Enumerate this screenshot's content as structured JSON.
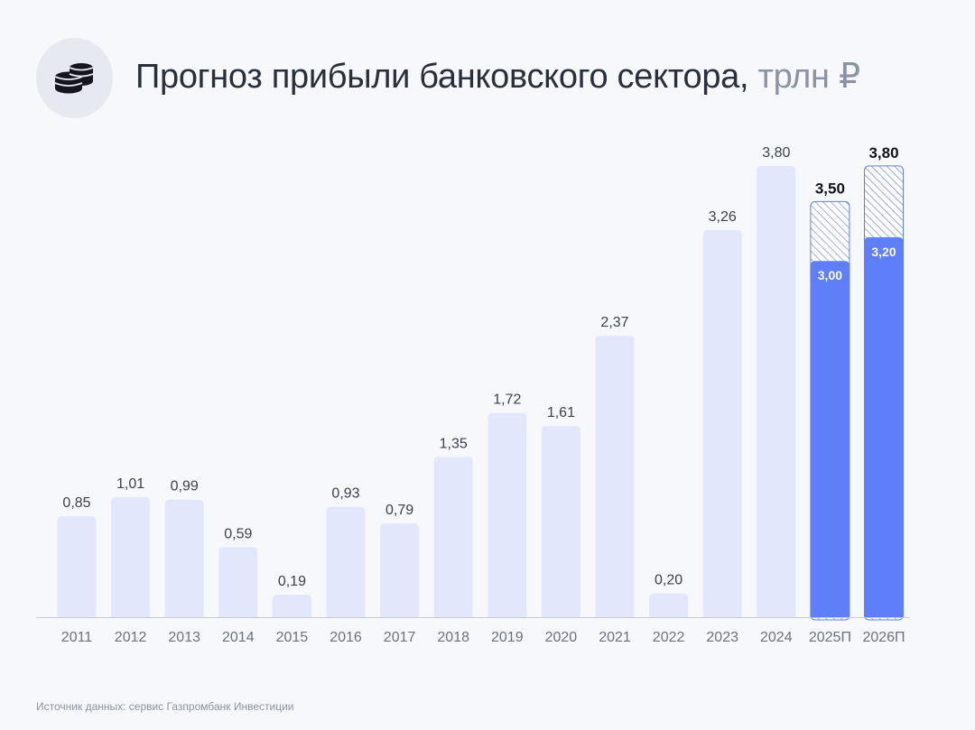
{
  "header": {
    "title": "Прогноз прибыли банковского сектора,",
    "unit": "трлн ₽",
    "icon": "coins-stack-icon"
  },
  "footer": {
    "source": "Источник данных: сервис Газпромбанк Инвестиции"
  },
  "colors": {
    "bar": "#e3e7fb",
    "forecast_bar": "#5e7ff9",
    "forecast_hatch": "#5e7ff9",
    "axis_line": "#c9ccd4",
    "value_label": "#3a3f4b",
    "tick_label": "#6b7180",
    "background": "#f7f8fb"
  },
  "chart_data": {
    "type": "bar",
    "title": "Прогноз прибыли банковского сектора, трлн ₽",
    "categories": [
      "2011",
      "2012",
      "2013",
      "2014",
      "2015",
      "2016",
      "2017",
      "2018",
      "2019",
      "2020",
      "2021",
      "2022",
      "2023",
      "2024",
      "2025П",
      "2026П"
    ],
    "values": [
      0.85,
      1.01,
      0.99,
      0.59,
      0.19,
      0.93,
      0.79,
      1.35,
      1.72,
      1.61,
      2.37,
      0.2,
      3.26,
      3.8,
      null,
      null
    ],
    "value_labels": [
      "0,85",
      "1,01",
      "0,99",
      "0,59",
      "0,19",
      "0,93",
      "0,79",
      "1,35",
      "1,72",
      "1,61",
      "2,37",
      "0,20",
      "3,26",
      "3,80",
      "",
      ""
    ],
    "forecast": [
      {
        "category": "2025П",
        "low": 3.0,
        "high": 3.5,
        "low_label": "3,00",
        "high_label": "3,50"
      },
      {
        "category": "2026П",
        "low": 3.2,
        "high": 3.8,
        "low_label": "3,20",
        "high_label": "3,80"
      }
    ],
    "ylim": [
      0,
      4.0
    ],
    "grid": false,
    "xlabel": "",
    "ylabel": ""
  }
}
